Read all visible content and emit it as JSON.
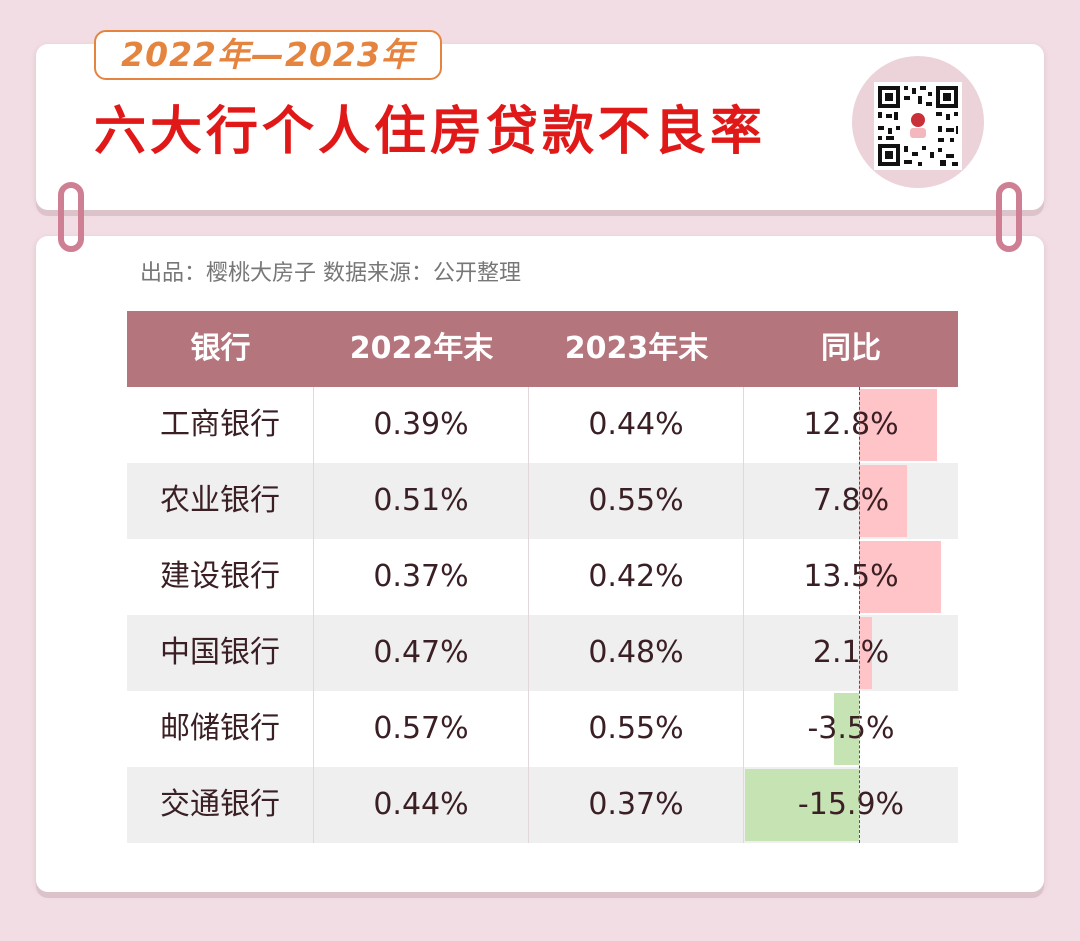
{
  "header": {
    "year_range": "2022年—2023年",
    "title": "六大行个人住房贷款不良率"
  },
  "source": "出品：樱桃大房子  数据来源：公开整理",
  "colors": {
    "title_red": "#e01818",
    "tag_orange": "#e5843f",
    "header_bg": "#b5757d",
    "positive_bar": "#ffc4c8",
    "negative_bar": "#c6e3b4"
  },
  "table": {
    "columns": [
      "银行",
      "2022年末",
      "2023年末",
      "同比"
    ],
    "rows": [
      {
        "bank": "工商银行",
        "y2022": "0.39%",
        "y2023": "0.44%",
        "yoy": "12.8%",
        "yoy_value": 12.8
      },
      {
        "bank": "农业银行",
        "y2022": "0.51%",
        "y2023": "0.55%",
        "yoy": "7.8%",
        "yoy_value": 7.8
      },
      {
        "bank": "建设银行",
        "y2022": "0.37%",
        "y2023": "0.42%",
        "yoy": "13.5%",
        "yoy_value": 13.5
      },
      {
        "bank": "中国银行",
        "y2022": "0.47%",
        "y2023": "0.48%",
        "yoy": "2.1%",
        "yoy_value": 2.1
      },
      {
        "bank": "邮储银行",
        "y2022": "0.57%",
        "y2023": "0.55%",
        "yoy": "-3.5%",
        "yoy_value": -3.5
      },
      {
        "bank": "交通银行",
        "y2022": "0.44%",
        "y2023": "0.37%",
        "yoy": "-15.9%",
        "yoy_value": -15.9
      }
    ]
  }
}
